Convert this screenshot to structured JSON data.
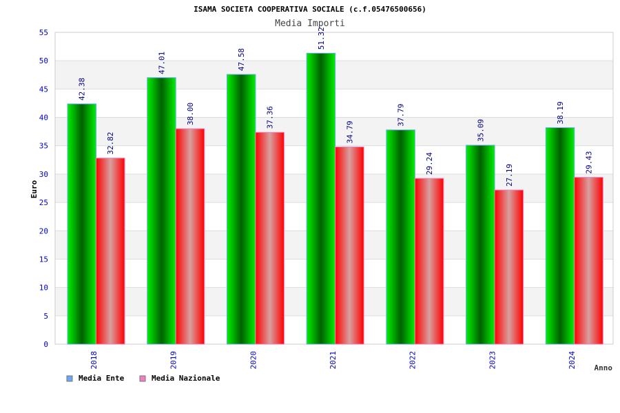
{
  "chart_data": {
    "type": "bar",
    "title": "ISAMA SOCIETA COOPERATIVA SOCIALE (c.f.05476500656)",
    "subtitle": "Media Importi",
    "xlabel": "Anno",
    "ylabel": "Euro",
    "ylim": [
      0,
      55
    ],
    "yticks": [
      "0",
      "5",
      "10",
      "15",
      "20",
      "25",
      "30",
      "35",
      "40",
      "45",
      "50",
      "55"
    ],
    "categories": [
      "2018",
      "2019",
      "2020",
      "2021",
      "2022",
      "2023",
      "2024"
    ],
    "series": [
      {
        "name": "Media Ente",
        "values": [
          42.38,
          47.01,
          47.58,
          51.32,
          37.79,
          35.09,
          38.19
        ],
        "labels": [
          "42.38",
          "47.01",
          "47.58",
          "51.32",
          "37.79",
          "35.09",
          "38.19"
        ],
        "color": "#00c800",
        "legend_color": "#6aa8f0"
      },
      {
        "name": "Media Nazionale",
        "values": [
          32.82,
          38.0,
          37.36,
          34.79,
          29.24,
          27.19,
          29.43
        ],
        "labels": [
          "32.82",
          "38.00",
          "37.36",
          "34.79",
          "29.24",
          "27.19",
          "29.43"
        ],
        "color": "#ff1010",
        "legend_color": "#f080c0"
      }
    ],
    "legend": "bottom-left"
  }
}
